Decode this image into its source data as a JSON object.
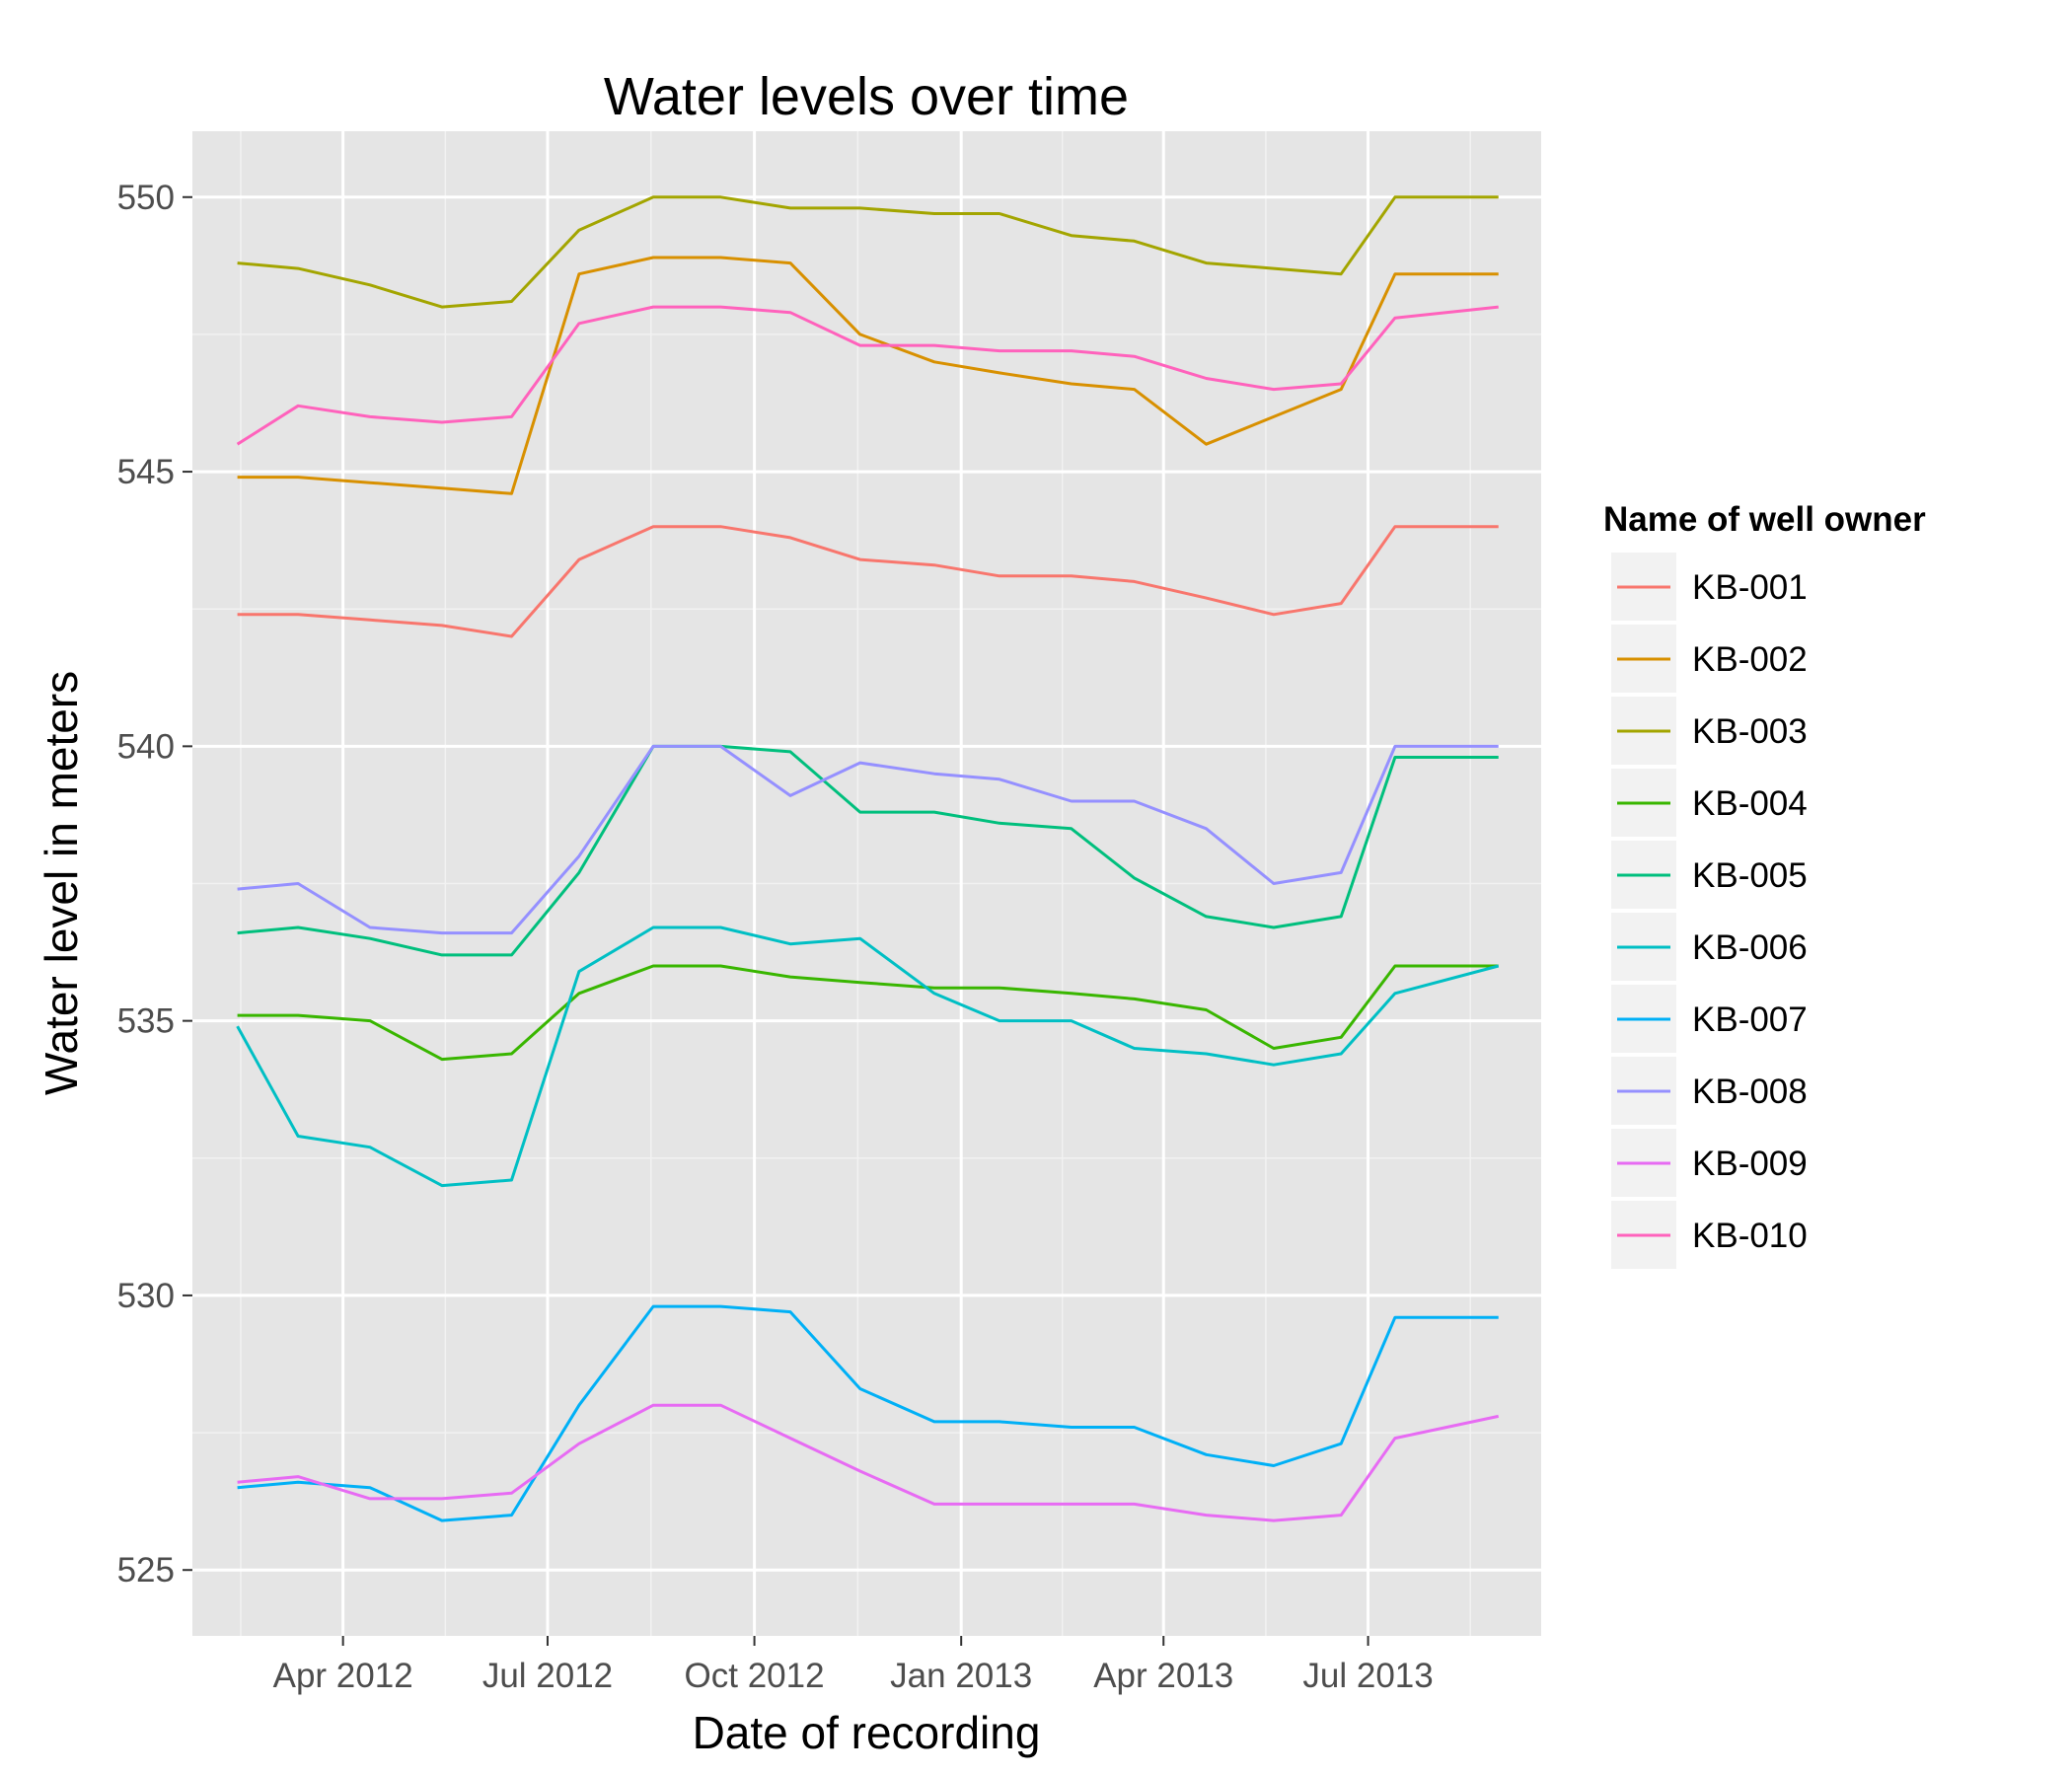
{
  "chart_data": {
    "type": "line",
    "title": "Water levels over time",
    "xlabel": "Date of recording",
    "ylabel": "Water level in meters",
    "legend_title": "Name of well owner",
    "legend_position": "right",
    "grid": true,
    "ylim": [
      523.8,
      551.2
    ],
    "y_ticks": [
      525,
      530,
      535,
      540,
      545,
      550
    ],
    "xlim": [
      "2012-01-25",
      "2013-09-16"
    ],
    "x_ticks": [
      {
        "date": "2012-04-01",
        "label": "Apr 2012"
      },
      {
        "date": "2012-07-01",
        "label": "Jul 2012"
      },
      {
        "date": "2012-10-01",
        "label": "Oct 2012"
      },
      {
        "date": "2013-01-01",
        "label": "Jan 2013"
      },
      {
        "date": "2013-04-01",
        "label": "Apr 2013"
      },
      {
        "date": "2013-07-01",
        "label": "Jul 2013"
      }
    ],
    "x": [
      "2012-02-14",
      "2012-03-12",
      "2012-04-13",
      "2012-05-15",
      "2012-06-15",
      "2012-07-15",
      "2012-08-17",
      "2012-09-16",
      "2012-10-17",
      "2012-11-17",
      "2012-12-20",
      "2013-01-18",
      "2013-02-19",
      "2013-03-19",
      "2013-04-20",
      "2013-05-20",
      "2013-06-19",
      "2013-07-13",
      "2013-08-28"
    ],
    "series": [
      {
        "name": "KB-001",
        "color": "#F8766D",
        "values": [
          542.4,
          542.4,
          542.3,
          542.2,
          542.0,
          543.4,
          544.0,
          544.0,
          543.8,
          543.4,
          543.3,
          543.1,
          543.1,
          543.0,
          542.7,
          542.4,
          542.6,
          544.0,
          544.0
        ]
      },
      {
        "name": "KB-002",
        "color": "#D89000",
        "values": [
          544.9,
          544.9,
          544.8,
          544.7,
          544.6,
          548.6,
          548.9,
          548.9,
          548.8,
          547.5,
          547.0,
          546.8,
          546.6,
          546.5,
          545.5,
          546.0,
          546.5,
          548.6,
          548.6
        ]
      },
      {
        "name": "KB-003",
        "color": "#A3A500",
        "values": [
          548.8,
          548.7,
          548.4,
          548.0,
          548.1,
          549.4,
          550.0,
          550.0,
          549.8,
          549.8,
          549.7,
          549.7,
          549.3,
          549.2,
          548.8,
          548.7,
          548.6,
          550.0,
          550.0
        ]
      },
      {
        "name": "KB-004",
        "color": "#39B600",
        "values": [
          535.1,
          535.1,
          535.0,
          534.3,
          534.4,
          535.5,
          536.0,
          536.0,
          535.8,
          535.7,
          535.6,
          535.6,
          535.5,
          535.4,
          535.2,
          534.5,
          534.7,
          536.0,
          536.0
        ]
      },
      {
        "name": "KB-005",
        "color": "#00BF7D",
        "values": [
          536.6,
          536.7,
          536.5,
          536.2,
          536.2,
          537.7,
          540.0,
          540.0,
          539.9,
          538.8,
          538.8,
          538.6,
          538.5,
          537.6,
          536.9,
          536.7,
          536.9,
          539.8,
          539.8
        ]
      },
      {
        "name": "KB-006",
        "color": "#00BFC4",
        "values": [
          534.9,
          532.9,
          532.7,
          532.0,
          532.1,
          535.9,
          536.7,
          536.7,
          536.4,
          536.5,
          535.5,
          535.0,
          535.0,
          534.5,
          534.4,
          534.2,
          534.4,
          535.5,
          536.0
        ]
      },
      {
        "name": "KB-007",
        "color": "#00B0F6",
        "values": [
          526.5,
          526.6,
          526.5,
          525.9,
          526.0,
          528.0,
          529.8,
          529.8,
          529.7,
          528.3,
          527.7,
          527.7,
          527.6,
          527.6,
          527.1,
          526.9,
          527.3,
          529.6,
          529.6
        ]
      },
      {
        "name": "KB-008",
        "color": "#9590FF",
        "values": [
          537.4,
          537.5,
          536.7,
          536.6,
          536.6,
          538.0,
          540.0,
          540.0,
          539.1,
          539.7,
          539.5,
          539.4,
          539.0,
          539.0,
          538.5,
          537.5,
          537.7,
          540.0,
          540.0
        ]
      },
      {
        "name": "KB-009",
        "color": "#E76BF3",
        "values": [
          526.6,
          526.7,
          526.3,
          526.3,
          526.4,
          527.3,
          528.0,
          528.0,
          527.4,
          526.8,
          526.2,
          526.2,
          526.2,
          526.2,
          526.0,
          525.9,
          526.0,
          527.4,
          527.8
        ]
      },
      {
        "name": "KB-010",
        "color": "#FF62BC",
        "values": [
          545.5,
          546.2,
          546.0,
          545.9,
          546.0,
          547.7,
          548.0,
          548.0,
          547.9,
          547.3,
          547.3,
          547.2,
          547.2,
          547.1,
          546.7,
          546.5,
          546.6,
          547.8,
          548.0
        ]
      }
    ]
  }
}
